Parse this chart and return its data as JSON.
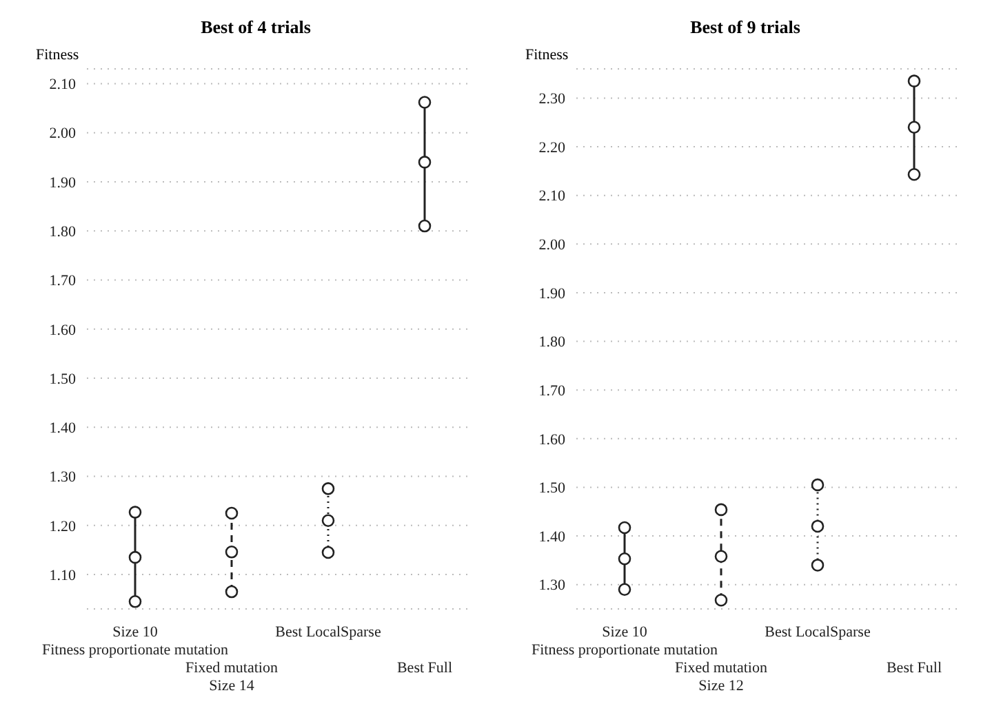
{
  "chart_data": [
    {
      "type": "line",
      "title": "Best of 4 trials",
      "ylabel": "Fitness",
      "categories": [
        "Size 10\nFitness proportionate mutation",
        "Fixed mutation\nSize 14",
        "Best LocalSparse",
        "Best Full"
      ],
      "ylim": [
        1.03,
        2.13
      ],
      "yticks": [
        {
          "value": 1.1,
          "label": "1.10"
        },
        {
          "value": 1.2,
          "label": "1.20"
        },
        {
          "value": 1.3,
          "label": "1.30"
        },
        {
          "value": 1.4,
          "label": "1.40"
        },
        {
          "value": 1.5,
          "label": "1.50"
        },
        {
          "value": 1.6,
          "label": "1.60"
        },
        {
          "value": 1.7,
          "label": "1.70"
        },
        {
          "value": 1.8,
          "label": "1.80"
        },
        {
          "value": 1.9,
          "label": "1.90"
        },
        {
          "value": 2.0,
          "label": "2.00"
        },
        {
          "value": 2.1,
          "label": "2.10"
        }
      ],
      "grid": "y",
      "marker": "circle",
      "series": [
        {
          "color": "#222222",
          "line_style": "solid",
          "x": [
            "Size 10\nFitness proportionate mutation",
            "Size 10\nFitness proportionate mutation",
            "Size 10\nFitness proportionate mutation"
          ],
          "values": [
            1.045,
            1.135,
            1.227
          ]
        },
        {
          "color": "#222222",
          "line_style": "dashed",
          "x": [
            "Fixed mutation\nSize 14",
            "Fixed mutation\nSize 14",
            "Fixed mutation\nSize 14"
          ],
          "values": [
            1.065,
            1.146,
            1.225
          ]
        },
        {
          "color": "#222222",
          "line_style": "dotted",
          "x": [
            "Best LocalSparse",
            "Best LocalSparse",
            "Best LocalSparse"
          ],
          "values": [
            1.145,
            1.21,
            1.275
          ]
        },
        {
          "color": "#222222",
          "line_style": "solid",
          "x": [
            "Best Full",
            "Best Full",
            "Best Full"
          ],
          "values": [
            1.81,
            1.94,
            2.062
          ]
        }
      ]
    },
    {
      "type": "line",
      "title": "Best of 9 trials",
      "ylabel": "Fitness",
      "categories": [
        "Size 10\nFitness proportionate mutation",
        "Fixed mutation\nSize 12",
        "Best LocalSparse",
        "Best Full"
      ],
      "ylim": [
        1.25,
        2.36
      ],
      "yticks": [
        {
          "value": 1.3,
          "label": "1.30"
        },
        {
          "value": 1.4,
          "label": "1.40"
        },
        {
          "value": 1.5,
          "label": "1.50"
        },
        {
          "value": 1.6,
          "label": "1.60"
        },
        {
          "value": 1.7,
          "label": "1.70"
        },
        {
          "value": 1.8,
          "label": "1.80"
        },
        {
          "value": 1.9,
          "label": "1.90"
        },
        {
          "value": 2.0,
          "label": "2.00"
        },
        {
          "value": 2.1,
          "label": "2.10"
        },
        {
          "value": 2.2,
          "label": "2.20"
        },
        {
          "value": 2.3,
          "label": "2.30"
        }
      ],
      "grid": "y",
      "marker": "circle",
      "series": [
        {
          "color": "#222222",
          "line_style": "solid",
          "x": [
            "Size 10\nFitness proportionate mutation",
            "Size 10\nFitness proportionate mutation",
            "Size 10\nFitness proportionate mutation"
          ],
          "values": [
            1.29,
            1.353,
            1.417
          ]
        },
        {
          "color": "#222222",
          "line_style": "dashed",
          "x": [
            "Fixed mutation\nSize 12",
            "Fixed mutation\nSize 12",
            "Fixed mutation\nSize 12"
          ],
          "values": [
            1.268,
            1.358,
            1.454
          ]
        },
        {
          "color": "#222222",
          "line_style": "dotted",
          "x": [
            "Best LocalSparse",
            "Best LocalSparse",
            "Best LocalSparse"
          ],
          "values": [
            1.34,
            1.42,
            1.505
          ]
        },
        {
          "color": "#222222",
          "line_style": "solid",
          "x": [
            "Best Full",
            "Best Full",
            "Best Full"
          ],
          "values": [
            2.143,
            2.24,
            2.335
          ]
        }
      ]
    }
  ]
}
